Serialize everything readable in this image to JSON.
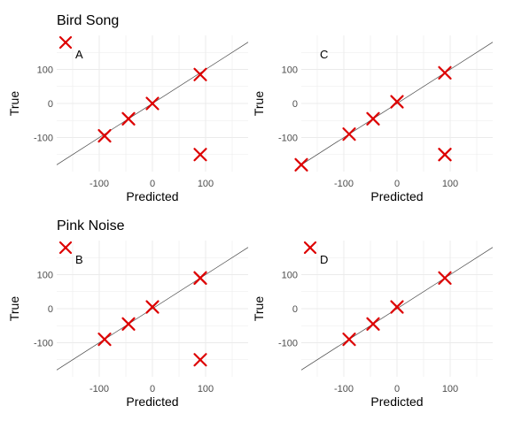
{
  "section_titles": [
    "Bird Song",
    "Pink Noise"
  ],
  "styles": {
    "marker_color": "#dd0000",
    "grid_color": "#ebebeb",
    "line_color": "#444444"
  },
  "chart_data": [
    {
      "type": "scatter",
      "letter": "A",
      "xlabel": "Predicted",
      "ylabel": "True",
      "xlim": [
        -180,
        180
      ],
      "ylim": [
        -200,
        200
      ],
      "xticks": [
        -100,
        0,
        100
      ],
      "yticks": [
        -100,
        0,
        100
      ],
      "identity_line": true,
      "grid": true,
      "legend_marker": true,
      "points": [
        {
          "x": -90,
          "y": -95
        },
        {
          "x": -45,
          "y": -45
        },
        {
          "x": 0,
          "y": 0
        },
        {
          "x": 90,
          "y": 85
        },
        {
          "x": 90,
          "y": -150
        }
      ]
    },
    {
      "type": "scatter",
      "letter": "C",
      "xlabel": "Predicted",
      "ylabel": "True",
      "xlim": [
        -180,
        180
      ],
      "ylim": [
        -200,
        200
      ],
      "xticks": [
        -100,
        0,
        100
      ],
      "yticks": [
        -100,
        0,
        100
      ],
      "identity_line": true,
      "grid": true,
      "legend_marker": false,
      "points": [
        {
          "x": -180,
          "y": -180
        },
        {
          "x": -90,
          "y": -90
        },
        {
          "x": -45,
          "y": -45
        },
        {
          "x": 0,
          "y": 5
        },
        {
          "x": 90,
          "y": 90
        },
        {
          "x": 90,
          "y": -150
        },
        {
          "x": 90,
          "y": -150
        }
      ]
    },
    {
      "type": "scatter",
      "letter": "B",
      "xlabel": "Predicted",
      "ylabel": "True",
      "xlim": [
        -180,
        180
      ],
      "ylim": [
        -200,
        200
      ],
      "xticks": [
        -100,
        0,
        100
      ],
      "yticks": [
        -100,
        0,
        100
      ],
      "identity_line": true,
      "grid": true,
      "legend_marker": true,
      "points": [
        {
          "x": -90,
          "y": -90
        },
        {
          "x": -45,
          "y": -45
        },
        {
          "x": 0,
          "y": 5
        },
        {
          "x": 90,
          "y": 90
        },
        {
          "x": 90,
          "y": 90
        },
        {
          "x": 90,
          "y": -150
        }
      ]
    },
    {
      "type": "scatter",
      "letter": "D",
      "xlabel": "Predicted",
      "ylabel": "True",
      "xlim": [
        -180,
        180
      ],
      "ylim": [
        -200,
        200
      ],
      "xticks": [
        -100,
        0,
        100
      ],
      "yticks": [
        -100,
        0,
        100
      ],
      "identity_line": true,
      "grid": true,
      "legend_marker": true,
      "points": [
        {
          "x": -90,
          "y": -90
        },
        {
          "x": -45,
          "y": -45
        },
        {
          "x": 0,
          "y": 5
        },
        {
          "x": 90,
          "y": 90
        }
      ]
    }
  ]
}
